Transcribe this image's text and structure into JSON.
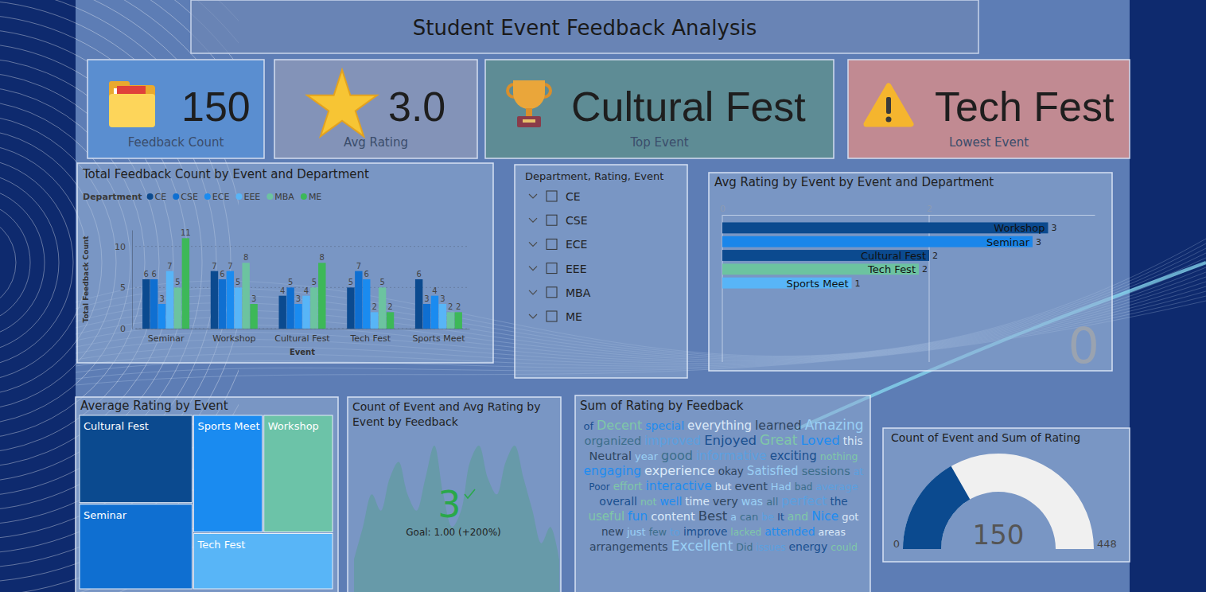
{
  "header": {
    "title": "Student Event Feedback Analysis"
  },
  "cards": [
    {
      "value": 150,
      "label": "Feedback Count"
    },
    {
      "value": 3,
      "value_label": "3.0",
      "label": "Avg Rating"
    },
    {
      "text": "Cultural Fest",
      "label": "Top Event"
    },
    {
      "text": "Tech Fest",
      "label": "Lowest Event"
    }
  ],
  "slicer": {
    "title": "Department, Rating, Event",
    "items": [
      "CE",
      "CSE",
      "ECE",
      "EEE",
      "MBA",
      "ME"
    ]
  },
  "chart_data": [
    {
      "type": "bar",
      "title": "Total Feedback Count by Event and Department",
      "x_label": "Event",
      "y_label": "Total Feedback Count",
      "legend_title": "Department",
      "legend": "top-left",
      "categories": [
        "Seminar",
        "Workshop",
        "Cultural Fest",
        "Tech Fest",
        "Sports Meet"
      ],
      "series": [
        {
          "name": "CE",
          "color": "#0b4a8f",
          "values": [
            6,
            7,
            4,
            5,
            6
          ]
        },
        {
          "name": "CSE",
          "color": "#0f6fd1",
          "values": [
            6,
            6,
            5,
            7,
            3
          ]
        },
        {
          "name": "ECE",
          "color": "#1a8bf0",
          "values": [
            3,
            7,
            3,
            6,
            4
          ]
        },
        {
          "name": "EEE",
          "color": "#58b5f7",
          "values": [
            7,
            5,
            4,
            2,
            3
          ]
        },
        {
          "name": "MBA",
          "color": "#6cc3a0",
          "values": [
            5,
            8,
            5,
            5,
            2
          ]
        },
        {
          "name": "ME",
          "color": "#3db858",
          "values": [
            11,
            3,
            8,
            2,
            2
          ]
        }
      ],
      "ylim": [
        0,
        12
      ],
      "yticks": [
        0,
        5,
        10
      ],
      "grid": true,
      "data_labels": true
    },
    {
      "type": "bar",
      "orientation": "horizontal",
      "title": "Avg Rating by Event by Event and Department",
      "categories": [
        "Workshop",
        "Seminar",
        "Cultural Fest",
        "Tech Fest",
        "Sports Meet"
      ],
      "values": [
        3.15,
        3.0,
        2.0,
        1.9,
        1.25
      ],
      "value_labels": [
        "3",
        "3",
        "2",
        "2",
        "1"
      ],
      "colors": [
        "#0b4a8f",
        "#1a86ea",
        "#0b4a8f",
        "#6cc3a0",
        "#58b5f7"
      ],
      "xlim": [
        0,
        3.6
      ],
      "xticks": [
        0,
        2
      ],
      "grid": true,
      "data_labels": true,
      "annotation": "0"
    },
    {
      "type": "treemap",
      "title": "Average Rating by Event",
      "categories": [
        "Cultural Fest",
        "Seminar",
        "Sports Meet",
        "Workshop",
        "Tech Fest"
      ],
      "values": [
        3.3,
        3.2,
        2.7,
        2.7,
        2.6
      ],
      "colors": [
        "#0b4a8f",
        "#0f6fd1",
        "#1a8bf0",
        "#6cc3a8",
        "#58b5f7"
      ]
    },
    {
      "type": "kpi",
      "title": "Count of Event and Avg Rating by Event by Feedback",
      "value": 3,
      "goal_label": "Goal: 1.00 (+200%)",
      "trend": [
        2,
        4,
        6,
        5,
        7,
        8,
        6,
        5,
        7,
        9,
        6,
        4,
        5,
        8,
        9,
        7,
        6,
        8,
        9,
        7,
        5,
        3,
        4,
        2
      ],
      "color": "#2aa84a"
    },
    {
      "type": "wordcloud",
      "title": "Sum of Rating by Feedback",
      "words": [
        "of",
        "Decent",
        "special",
        "everything",
        "learned",
        "Amazing",
        "organized",
        "improved",
        "Enjoyed",
        "Great",
        "Loved",
        "this",
        "Neutral",
        "year",
        "good",
        "informative",
        "exciting",
        "nothing",
        "engaging",
        "experience",
        "okay",
        "Satisfied",
        "sessions",
        "at",
        "Poor",
        "effort",
        "interactive",
        "but",
        "event",
        "Had",
        "bad",
        "average",
        "overall",
        "not",
        "well",
        "time",
        "very",
        "was",
        "all",
        "perfect",
        "the",
        "useful",
        "fun",
        "content",
        "Best",
        "a",
        "can",
        "be",
        "It",
        "and",
        "Nice",
        "got",
        "new",
        "just",
        "few",
        "to",
        "improve",
        "lacked",
        "attended",
        "areas",
        "arrangements",
        "Excellent",
        "Did",
        "issues",
        "energy",
        "could"
      ],
      "values": [
        12,
        18,
        14,
        16,
        17,
        20,
        15,
        16,
        19,
        20,
        19,
        13,
        15,
        12,
        18,
        17,
        16,
        11,
        17,
        18,
        13,
        16,
        15,
        11,
        10,
        13,
        17,
        11,
        15,
        12,
        10,
        12,
        14,
        11,
        14,
        13,
        15,
        14,
        12,
        18,
        13,
        16,
        17,
        15,
        19,
        11,
        12,
        11,
        12,
        14,
        17,
        12,
        13,
        12,
        11,
        12,
        13,
        10,
        14,
        11,
        14,
        20,
        11,
        10,
        14,
        11
      ]
    },
    {
      "type": "gauge",
      "title": "Count of Event and Sum of Rating",
      "value": 150,
      "min": 0,
      "max": 448,
      "color": "#0b4a8f"
    }
  ]
}
